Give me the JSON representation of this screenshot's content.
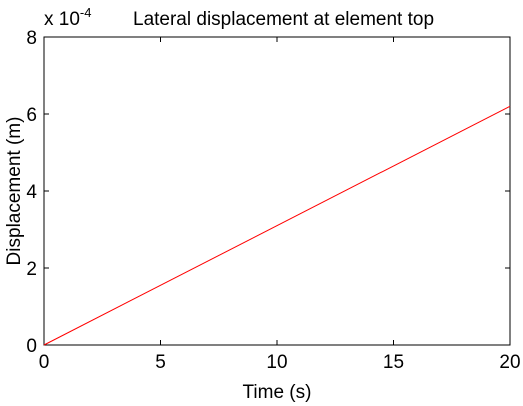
{
  "chart_data": {
    "type": "line",
    "title": "Lateral displacement at element top",
    "xlabel": "Time (s)",
    "ylabel": "Displacement (m)",
    "y_scale_exponent_base": "x 10",
    "y_scale_exponent_power": "-4",
    "xlim": [
      0,
      20
    ],
    "ylim": [
      0,
      8
    ],
    "xticks": [
      "0",
      "5",
      "10",
      "15",
      "20"
    ],
    "yticks": [
      "0",
      "2",
      "4",
      "6",
      "8"
    ],
    "grid": false,
    "legend": "none",
    "series": [
      {
        "x": [
          0,
          20
        ],
        "y": [
          0,
          6.2
        ],
        "y_scale": "x 10^-4",
        "color": "#ff0000"
      }
    ]
  },
  "colors": {
    "axes": "#000000",
    "background": "#ffffff",
    "line": "#ff0000"
  }
}
